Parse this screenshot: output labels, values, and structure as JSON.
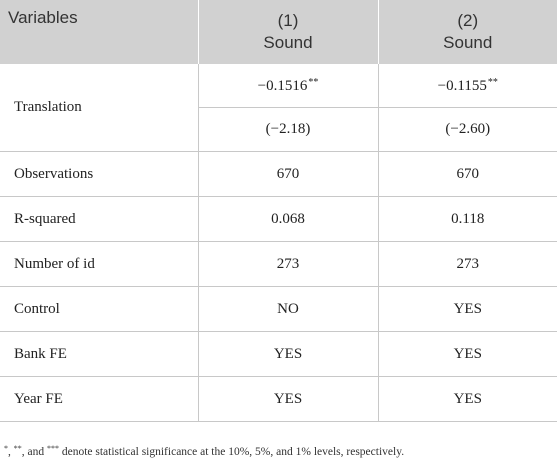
{
  "header": {
    "variables_label": "Variables",
    "columns": [
      {
        "number": "(1)",
        "dependent": "Sound"
      },
      {
        "number": "(2)",
        "dependent": "Sound"
      }
    ]
  },
  "rows": {
    "translation": {
      "label": "Translation",
      "coef": [
        {
          "value": "−0.1516",
          "stars": "**"
        },
        {
          "value": "−0.1155",
          "stars": "**"
        }
      ],
      "tstat": [
        "(−2.18)",
        "(−2.60)"
      ]
    },
    "observations": {
      "label": "Observations",
      "values": [
        "670",
        "670"
      ]
    },
    "r_squared": {
      "label": "R-squared",
      "values": [
        "0.068",
        "0.118"
      ]
    },
    "number_of_id": {
      "label": "Number of id",
      "values": [
        "273",
        "273"
      ]
    },
    "control": {
      "label": "Control",
      "values": [
        "NO",
        "YES"
      ]
    },
    "bank_fe": {
      "label": "Bank FE",
      "values": [
        "YES",
        "YES"
      ]
    },
    "year_fe": {
      "label": "Year FE",
      "values": [
        "YES",
        "YES"
      ]
    }
  },
  "footnote": {
    "mark1": "*",
    "sep1": ", ",
    "mark2": "**",
    "sep2": ", and ",
    "mark3": "***",
    "text": " denote statistical significance at the 10%, 5%, and 1% levels, respectively."
  }
}
